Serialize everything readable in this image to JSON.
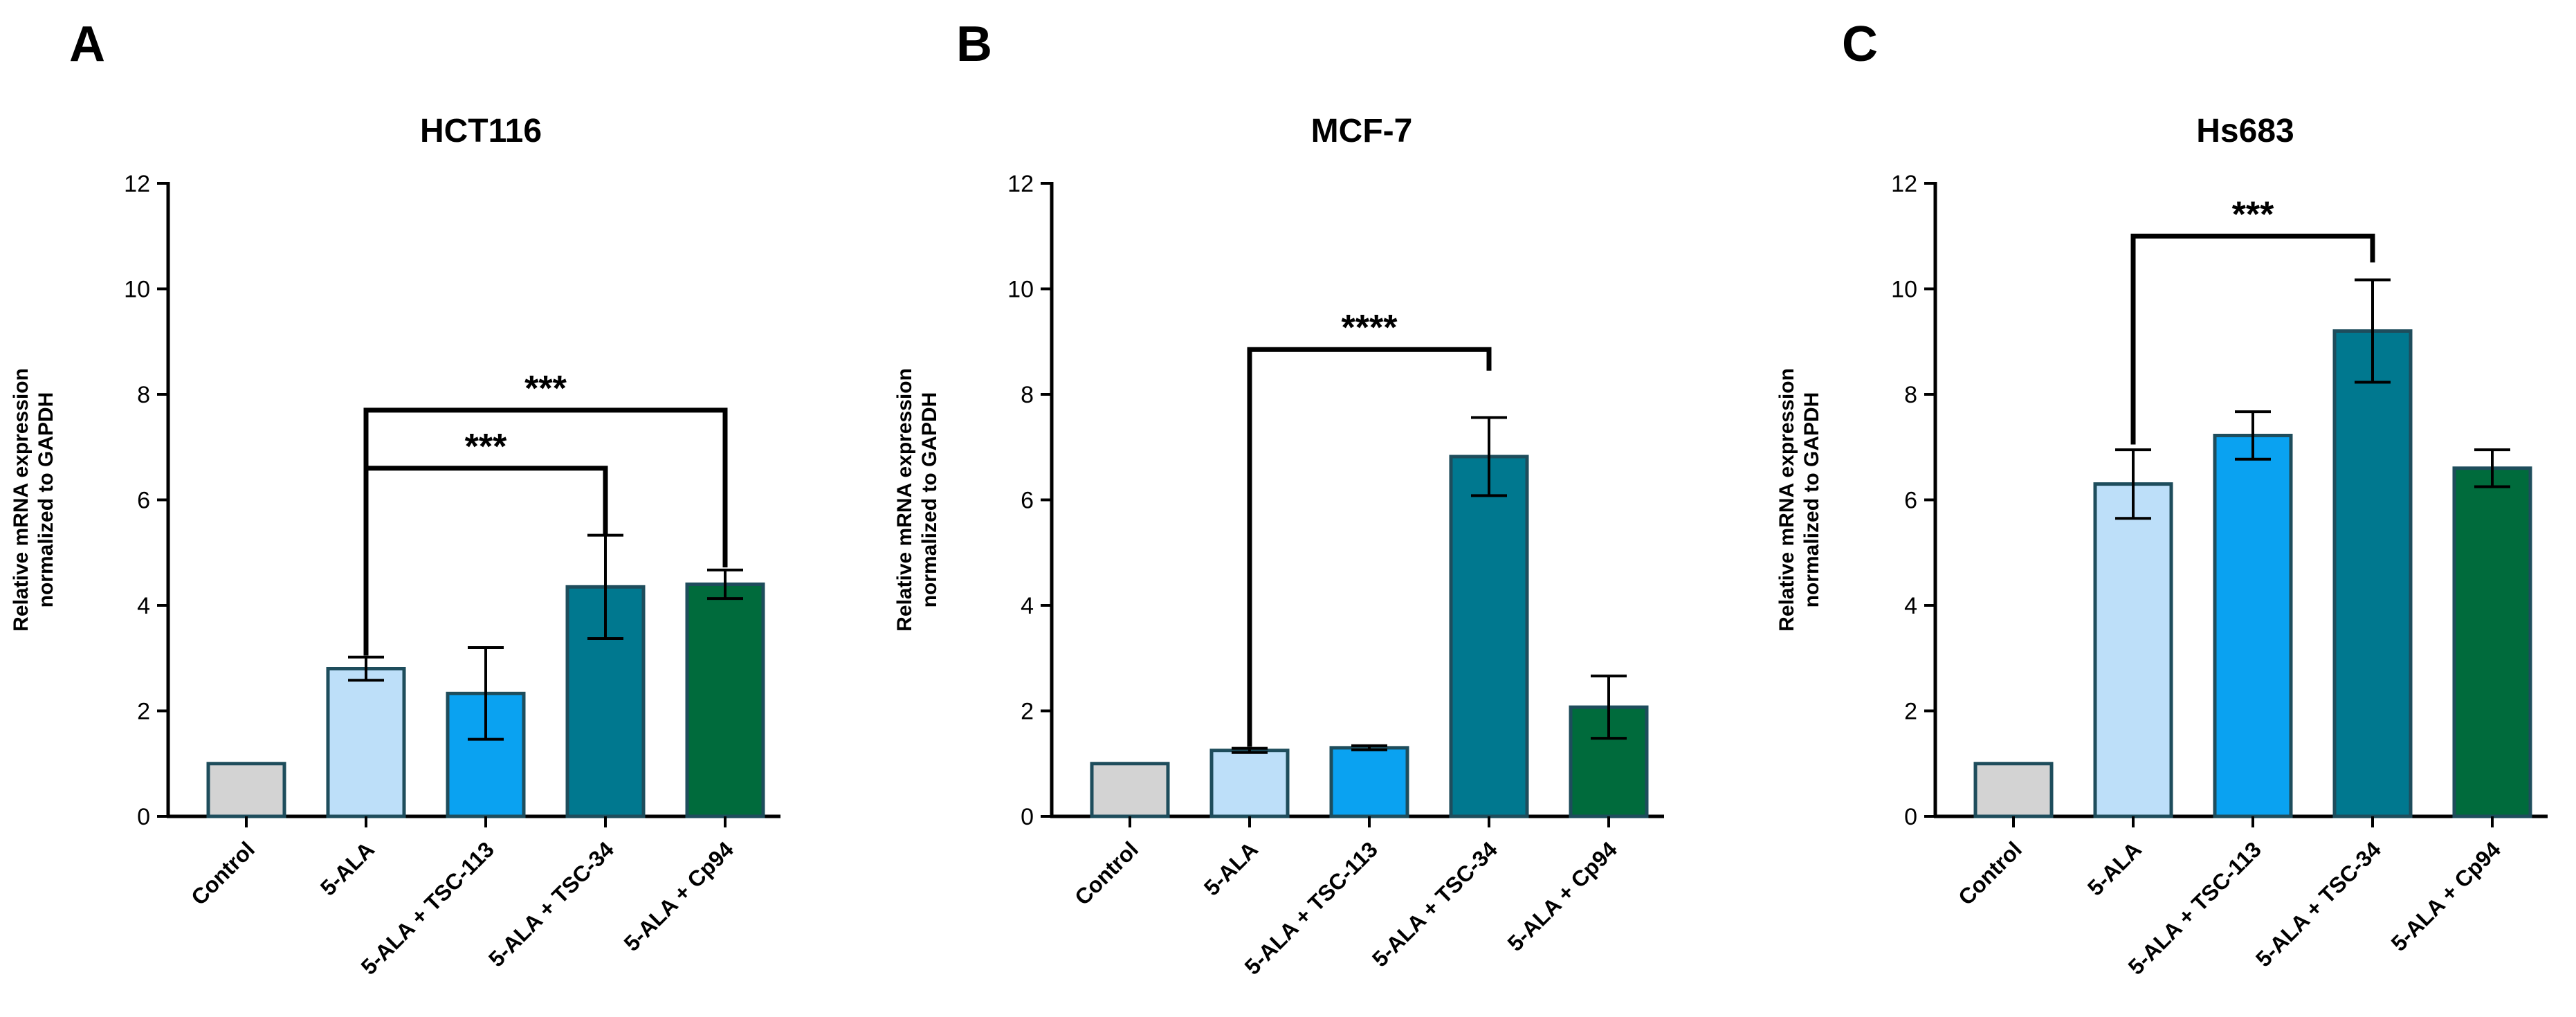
{
  "chart_data": [
    {
      "panel_letter": "A",
      "type": "bar",
      "title": "HCT116",
      "ylabel_lines": [
        "Relative mRNA expression",
        "normalized to GAPDH"
      ],
      "categories": [
        "Control",
        "5-ALA",
        "5-ALA + TSC-113",
        "5-ALA + TSC-34",
        "5-ALA + Cp94"
      ],
      "values": [
        1.0,
        2.8,
        2.33,
        4.35,
        4.4
      ],
      "errors": [
        0,
        0.22,
        0.87,
        0.98,
        0.27
      ],
      "bar_colors": [
        "#d3d3d3",
        "#bddff9",
        "#0aa2f1",
        "#00788f",
        "#006b3c"
      ],
      "ylim": [
        0,
        12
      ],
      "yticks": [
        0,
        2,
        4,
        6,
        8,
        10,
        12
      ],
      "significance": [
        {
          "from": 1,
          "to": 4,
          "bracket_y": 7.7,
          "from_end": 3.05,
          "to_end": 4.72,
          "label": "***"
        },
        {
          "from": 1,
          "to": 3,
          "bracket_y": 6.6,
          "from_end": 3.05,
          "to_end": 5.35,
          "label": "***"
        }
      ]
    },
    {
      "panel_letter": "B",
      "type": "bar",
      "title": "MCF-7",
      "ylabel_lines": [
        "Relative mRNA expression",
        "normalized to GAPDH"
      ],
      "categories": [
        "Control",
        "5-ALA",
        "5-ALA + TSC-113",
        "5-ALA + TSC-34",
        "5-ALA + Cp94"
      ],
      "values": [
        1.0,
        1.25,
        1.3,
        6.82,
        2.07
      ],
      "errors": [
        0,
        0.04,
        0.04,
        0.74,
        0.59
      ],
      "bar_colors": [
        "#d3d3d3",
        "#bddff9",
        "#0aa2f1",
        "#00788f",
        "#006b3c"
      ],
      "ylim": [
        0,
        12
      ],
      "yticks": [
        0,
        2,
        4,
        6,
        8,
        10,
        12
      ],
      "significance": [
        {
          "from": 1,
          "to": 3,
          "bracket_y": 8.85,
          "from_end": 1.32,
          "to_end": 8.45,
          "label": "****"
        }
      ]
    },
    {
      "panel_letter": "C",
      "type": "bar",
      "title": "Hs683",
      "ylabel_lines": [
        "Relative mRNA expression",
        "normalized to GAPDH"
      ],
      "categories": [
        "Control",
        "5-ALA",
        "5-ALA + TSC-113",
        "5-ALA + TSC-34",
        "5-ALA + Cp94"
      ],
      "values": [
        1.0,
        6.3,
        7.22,
        9.2,
        6.6
      ],
      "errors": [
        0,
        0.65,
        0.45,
        0.97,
        0.35
      ],
      "bar_colors": [
        "#d3d3d3",
        "#bddff9",
        "#0aa2f1",
        "#00788f",
        "#006b3c"
      ],
      "ylim": [
        0,
        12
      ],
      "yticks": [
        0,
        2,
        4,
        6,
        8,
        10,
        12
      ],
      "significance": [
        {
          "from": 1,
          "to": 3,
          "bracket_y": 11.0,
          "from_end": 7.05,
          "to_end": 10.5,
          "label": "***"
        }
      ]
    }
  ]
}
